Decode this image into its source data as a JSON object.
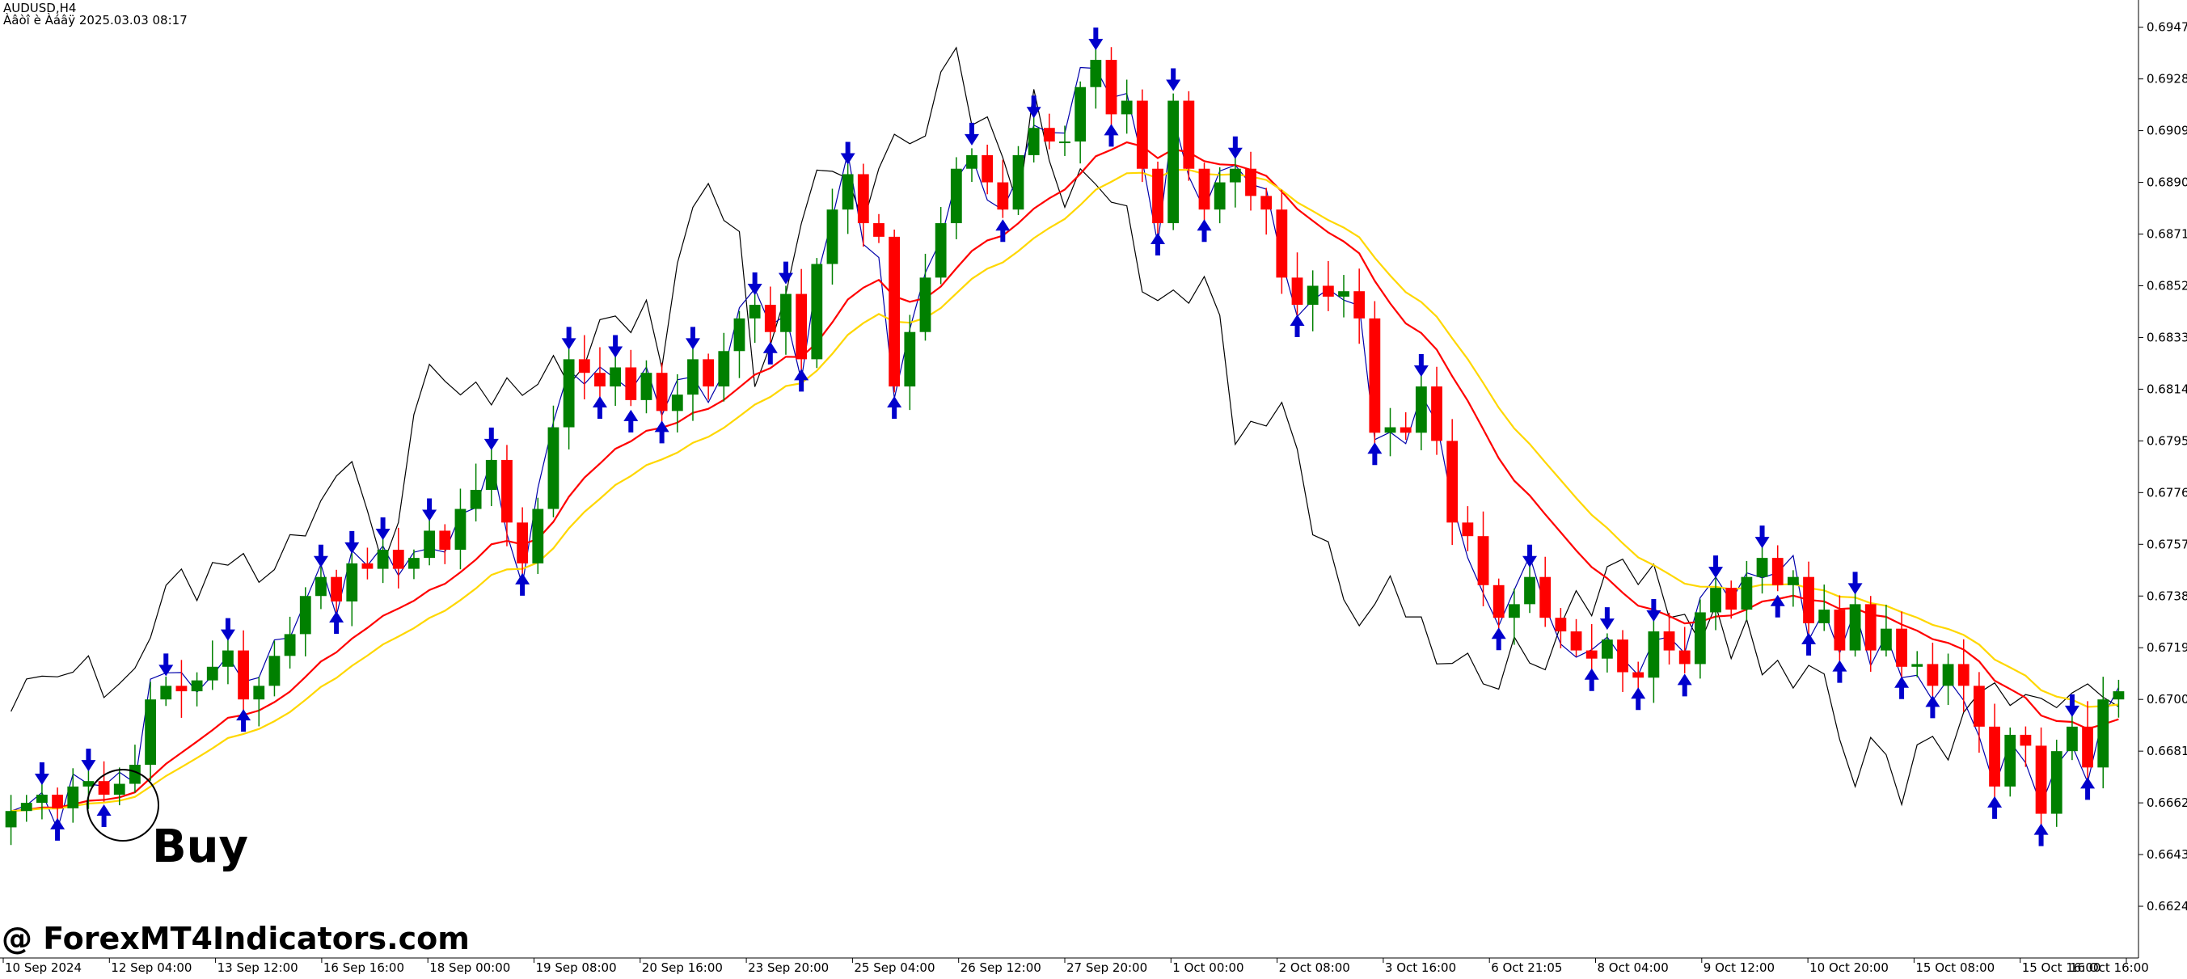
{
  "header": {
    "symbol_line": "AUDUSD,H4",
    "info_line": "Àâòî è Àáâÿ 2025.03.03 08:17"
  },
  "annotation": {
    "buy_label": "Buy"
  },
  "watermark": "@ ForexMT4Indicators.com",
  "colors": {
    "background": "#ffffff",
    "bull_candle": "#008000",
    "bear_candle": "#ff0000",
    "ma_fast": "#ff0000",
    "ma_slow": "#ffd700",
    "oscillator_line": "#000000",
    "signal_line": "#0000aa",
    "arrow": "#0000cc"
  },
  "chart_data": {
    "type": "candlestick",
    "symbol": "AUDUSD",
    "timeframe": "H4",
    "ylim": [
      0.6605,
      0.6957
    ],
    "y_ticks": [
      "0.69470",
      "0.69280",
      "0.69090",
      "0.68900",
      "0.68710",
      "0.68520",
      "0.68330",
      "0.68140",
      "0.67950",
      "0.67760",
      "0.67570",
      "0.67380",
      "0.67190",
      "0.67000",
      "0.66810",
      "0.66620",
      "0.66430",
      "0.66240"
    ],
    "x_ticks": [
      "10 Sep 2024",
      "12 Sep 04:00",
      "13 Sep 12:00",
      "16 Sep 16:00",
      "18 Sep 00:00",
      "19 Sep 08:00",
      "20 Sep 16:00",
      "23 Sep 20:00",
      "25 Sep 04:00",
      "26 Sep 12:00",
      "27 Sep 20:00",
      "1 Oct 00:00",
      "2 Oct 08:00",
      "3 Oct 16:00",
      "6 Oct 21:05",
      "8 Oct 04:00",
      "9 Oct 12:00",
      "10 Oct 20:00",
      "15 Oct 08:00",
      "15 Oct 16:00",
      "16 Oct 16:00"
    ],
    "closes": [
      0.6659,
      0.6662,
      0.6665,
      0.666,
      0.6668,
      0.667,
      0.6665,
      0.6669,
      0.6676,
      0.67,
      0.6705,
      0.6703,
      0.6707,
      0.6712,
      0.6718,
      0.67,
      0.6705,
      0.6716,
      0.6724,
      0.6738,
      0.6745,
      0.6736,
      0.675,
      0.6748,
      0.6755,
      0.6748,
      0.6752,
      0.6762,
      0.6755,
      0.677,
      0.6777,
      0.6788,
      0.6765,
      0.675,
      0.677,
      0.68,
      0.6825,
      0.682,
      0.6815,
      0.6822,
      0.681,
      0.682,
      0.6806,
      0.6812,
      0.6825,
      0.6815,
      0.6828,
      0.684,
      0.6845,
      0.6835,
      0.6849,
      0.6825,
      0.686,
      0.688,
      0.6893,
      0.6875,
      0.687,
      0.6815,
      0.6835,
      0.6855,
      0.6875,
      0.6895,
      0.69,
      0.689,
      0.688,
      0.69,
      0.691,
      0.6905,
      0.6905,
      0.6925,
      0.6935,
      0.6915,
      0.692,
      0.6895,
      0.6875,
      0.692,
      0.6895,
      0.688,
      0.689,
      0.6895,
      0.6885,
      0.688,
      0.6855,
      0.6845,
      0.6852,
      0.6848,
      0.685,
      0.684,
      0.6798,
      0.68,
      0.6798,
      0.6815,
      0.6795,
      0.6765,
      0.676,
      0.6742,
      0.673,
      0.6735,
      0.6745,
      0.673,
      0.6725,
      0.6718,
      0.6715,
      0.6722,
      0.671,
      0.6708,
      0.6725,
      0.6718,
      0.6713,
      0.6732,
      0.6741,
      0.6733,
      0.6745,
      0.6752,
      0.6742,
      0.6745,
      0.6728,
      0.6733,
      0.6718,
      0.6735,
      0.6718,
      0.6726,
      0.6712,
      0.6713,
      0.6705,
      0.6713,
      0.6705,
      0.669,
      0.6668,
      0.6687,
      0.6683,
      0.6658,
      0.6681,
      0.669,
      0.6675,
      0.67,
      0.6703
    ],
    "annotations": [
      "Buy"
    ]
  }
}
